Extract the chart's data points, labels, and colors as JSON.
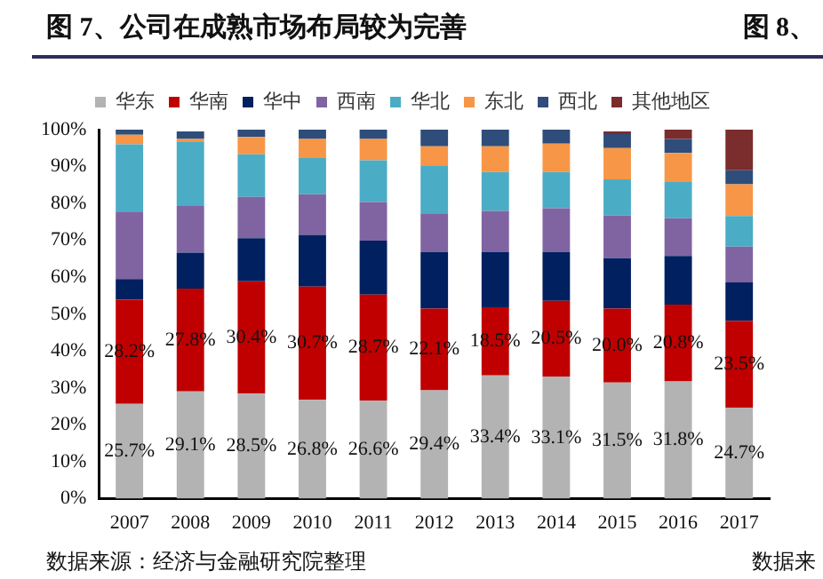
{
  "chart_data": {
    "type": "bar",
    "title": "图 7、公司在成熟市场布局较为完善",
    "stacked": true,
    "legend": "top",
    "grid": false,
    "categories": [
      "2007",
      "2008",
      "2009",
      "2010",
      "2011",
      "2012",
      "2013",
      "2014",
      "2015",
      "2016",
      "2017"
    ],
    "ylim": [
      0,
      100
    ],
    "yticks": [
      {
        "value": 0,
        "label": "0%"
      },
      {
        "value": 10,
        "label": "10%"
      },
      {
        "value": 20,
        "label": "20%"
      },
      {
        "value": 30,
        "label": "30%"
      },
      {
        "value": 40,
        "label": "40%"
      },
      {
        "value": 50,
        "label": "50%"
      },
      {
        "value": 60,
        "label": "60%"
      },
      {
        "value": 70,
        "label": "70%"
      },
      {
        "value": 80,
        "label": "80%"
      },
      {
        "value": 90,
        "label": "90%"
      },
      {
        "value": 100,
        "label": "100%"
      }
    ],
    "series": [
      {
        "name": "华东",
        "color": "#b3b3b3",
        "values": [
          25.7,
          29.1,
          28.5,
          26.8,
          26.6,
          29.4,
          33.4,
          33.1,
          31.5,
          31.8,
          24.7
        ],
        "value_labels": [
          "25.7%",
          "29.1%",
          "28.5%",
          "26.8%",
          "26.6%",
          "29.4%",
          "33.4%",
          "33.1%",
          "31.5%",
          "31.8%",
          "24.7%"
        ]
      },
      {
        "name": "华南",
        "color": "#c00000",
        "values": [
          28.2,
          27.8,
          30.4,
          30.7,
          28.7,
          22.1,
          18.5,
          20.5,
          20.0,
          20.8,
          23.5
        ],
        "value_labels": [
          "28.2%",
          "27.8%",
          "30.4%",
          "30.7%",
          "28.7%",
          "22.1%",
          "18.5%",
          "20.5%",
          "20.0%",
          "20.8%",
          "23.5%"
        ]
      },
      {
        "name": "华中",
        "color": "#002060",
        "values": [
          5.6,
          9.8,
          11.7,
          14.0,
          14.6,
          15.3,
          14.9,
          13.2,
          13.7,
          13.2,
          10.4
        ]
      },
      {
        "name": "西南",
        "color": "#8064a2",
        "values": [
          18.3,
          12.6,
          11.2,
          11.0,
          10.5,
          10.5,
          11.2,
          11.9,
          11.6,
          10.2,
          9.7
        ]
      },
      {
        "name": "华北",
        "color": "#4bacc6",
        "values": [
          18.2,
          17.5,
          11.5,
          9.8,
          11.3,
          13.0,
          10.5,
          9.8,
          9.7,
          9.8,
          8.3
        ]
      },
      {
        "name": "东北",
        "color": "#f79646",
        "values": [
          2.6,
          0.7,
          4.7,
          5.2,
          5.8,
          5.2,
          7.0,
          7.7,
          8.5,
          7.9,
          8.6
        ]
      },
      {
        "name": "西北",
        "color": "#2e4d7b",
        "values": [
          1.4,
          2.0,
          2.0,
          2.5,
          2.5,
          4.5,
          4.5,
          3.8,
          3.8,
          3.8,
          3.8
        ]
      },
      {
        "name": "其他地区",
        "color": "#7b2c2c",
        "values": [
          0,
          0,
          0,
          0,
          0,
          0,
          0,
          0,
          0.7,
          2.5,
          11.0
        ]
      }
    ],
    "annotations": [
      "数据来源：经济与金融研究院整理",
      "图 8、",
      "数据来"
    ]
  }
}
